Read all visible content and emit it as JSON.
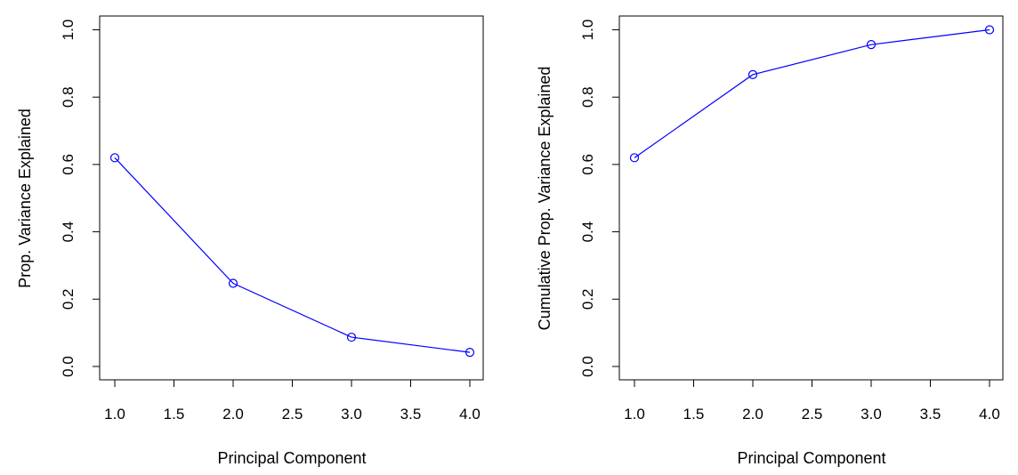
{
  "chart_data": [
    {
      "type": "line",
      "title": "",
      "xlabel": "Principal Component",
      "ylabel": "Prop. Variance Explained",
      "x": [
        1,
        2,
        3,
        4
      ],
      "values": [
        0.62,
        0.247,
        0.087,
        0.042
      ],
      "xlim": [
        1,
        4
      ],
      "ylim": [
        0,
        1
      ],
      "x_ticks": [
        "1.0",
        "1.5",
        "2.0",
        "2.5",
        "3.0",
        "3.5",
        "4.0"
      ],
      "x_tick_values": [
        1.0,
        1.5,
        2.0,
        2.5,
        3.0,
        3.5,
        4.0
      ],
      "y_ticks": [
        "0.0",
        "0.2",
        "0.4",
        "0.6",
        "0.8",
        "1.0"
      ],
      "y_tick_values": [
        0.0,
        0.2,
        0.4,
        0.6,
        0.8,
        1.0
      ],
      "color": "#0000ff",
      "markers": "open-circle",
      "grid": false,
      "legend": "none"
    },
    {
      "type": "line",
      "title": "",
      "xlabel": "Principal Component",
      "ylabel": "Cumulative Prop. Variance Explained",
      "x": [
        1,
        2,
        3,
        4
      ],
      "values": [
        0.62,
        0.867,
        0.956,
        1.0
      ],
      "xlim": [
        1,
        4
      ],
      "ylim": [
        0,
        1
      ],
      "x_ticks": [
        "1.0",
        "1.5",
        "2.0",
        "2.5",
        "3.0",
        "3.5",
        "4.0"
      ],
      "x_tick_values": [
        1.0,
        1.5,
        2.0,
        2.5,
        3.0,
        3.5,
        4.0
      ],
      "y_ticks": [
        "0.0",
        "0.2",
        "0.4",
        "0.6",
        "0.8",
        "1.0"
      ],
      "y_tick_values": [
        0.0,
        0.2,
        0.4,
        0.6,
        0.8,
        1.0
      ],
      "color": "#0000ff",
      "markers": "open-circle",
      "grid": false,
      "legend": "none"
    }
  ]
}
